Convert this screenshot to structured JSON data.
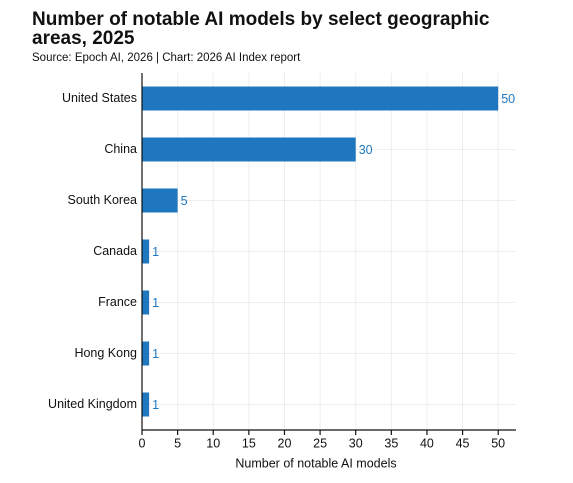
{
  "chart_data": {
    "type": "bar",
    "orientation": "horizontal",
    "title": "Number of notable AI models by select geographic areas, 2025",
    "subtitle": "Source: Epoch AI, 2026 | Chart: 2026 AI Index report",
    "xlabel": "Number of notable AI models",
    "categories": [
      "United States",
      "China",
      "South Korea",
      "Canada",
      "France",
      "Hong Kong",
      "United Kingdom"
    ],
    "values": [
      50,
      30,
      5,
      1,
      1,
      1,
      1
    ],
    "color": "#1f77c0",
    "xlim": [
      0,
      52.5
    ],
    "xticks": [
      0,
      5,
      10,
      15,
      20,
      25,
      30,
      35,
      40,
      45,
      50
    ],
    "grid": true
  }
}
